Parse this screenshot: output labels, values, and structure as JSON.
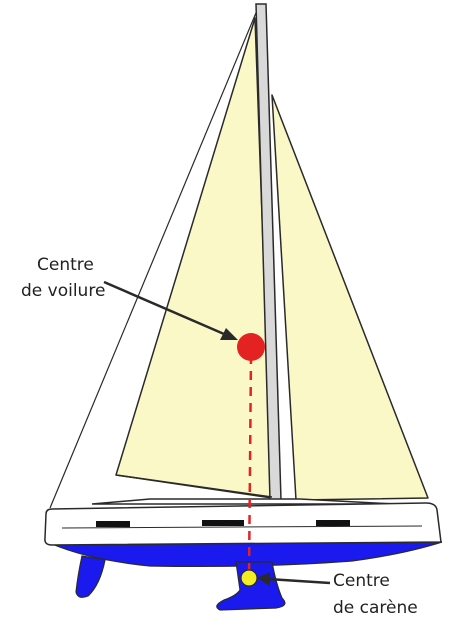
{
  "labels": {
    "sail_center_line1": "Centre",
    "sail_center_line2": "de voilure",
    "hull_center_line1": "Centre",
    "hull_center_line2": "de carène"
  },
  "colors": {
    "sail_fill": "#fbf8c8",
    "outline": "#2a2a2a",
    "hull_white": "#ffffff",
    "underwater_blue": "#1a1aee",
    "sail_center_red": "#e52222",
    "hull_center_yellow": "#f2ee26",
    "dashed_line_red": "#e52222",
    "window_black": "#111111",
    "mast_gray": "#d9d9d9"
  }
}
